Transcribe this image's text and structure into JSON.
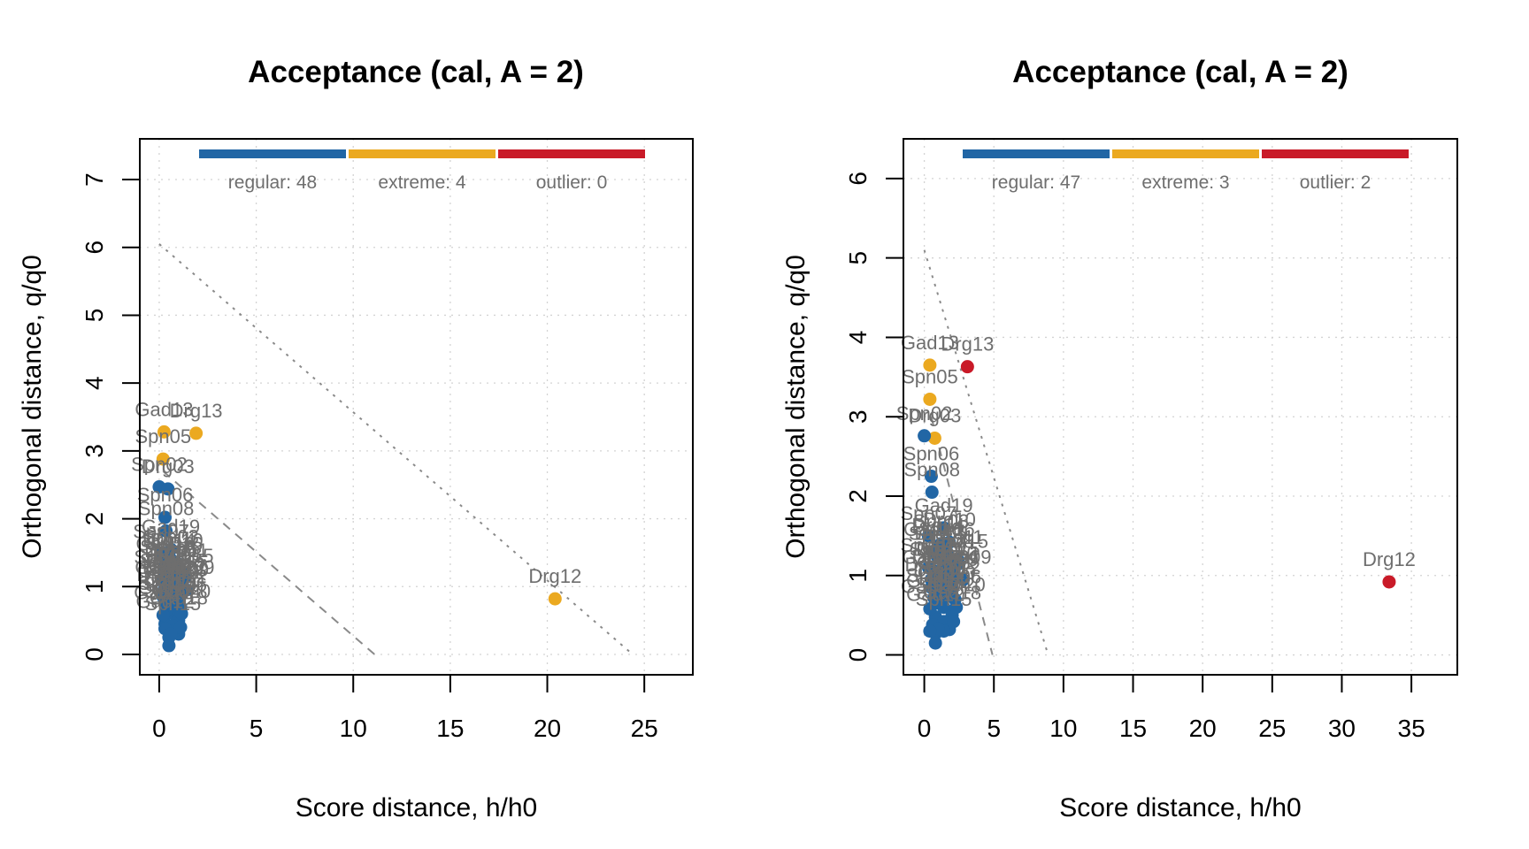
{
  "chart_data": [
    {
      "type": "scatter",
      "title": "Acceptance (cal, A = 2)",
      "xlabel": "Score distance, h/h0",
      "ylabel": "Orthogonal distance, q/q0",
      "xlim": [
        -1,
        27.5
      ],
      "ylim": [
        -0.3,
        7.6
      ],
      "xticks": [
        0,
        5,
        10,
        15,
        20,
        25
      ],
      "yticks": [
        0,
        1,
        2,
        3,
        4,
        5,
        6,
        7
      ],
      "grid": true,
      "legend": {
        "placement": "top",
        "items": [
          {
            "label": "regular: 48",
            "color": "#2166a5"
          },
          {
            "label": "extreme: 4",
            "color": "#eba920"
          },
          {
            "label": "outlier: 0",
            "color": "#c91a28"
          }
        ]
      },
      "boundaries": [
        {
          "name": "extreme",
          "style": "dashed",
          "points": [
            [
              0.2,
              2.7
            ],
            [
              11.1,
              0
            ]
          ]
        },
        {
          "name": "outlier",
          "style": "dotted",
          "points": [
            [
              0,
              6.05
            ],
            [
              24.4,
              0
            ]
          ]
        }
      ],
      "colors": {
        "regular": "#2166a5",
        "extreme": "#eba920",
        "outlier": "#c91a28",
        "label": "#6e6e6e"
      },
      "points": [
        {
          "label": "Gad13",
          "x": 0.25,
          "y": 3.28,
          "class": "extreme"
        },
        {
          "label": "Drg13",
          "x": 1.9,
          "y": 3.26,
          "class": "extreme"
        },
        {
          "label": "Spn05",
          "x": 0.2,
          "y": 2.88,
          "class": "extreme"
        },
        {
          "label": "Drg12",
          "x": 20.4,
          "y": 0.82,
          "class": "extreme"
        },
        {
          "label": "Spn02",
          "x": 0.0,
          "y": 2.47,
          "class": "regular"
        },
        {
          "label": "Drg03",
          "x": 0.45,
          "y": 2.44,
          "class": "regular"
        },
        {
          "label": "Spn06",
          "x": 0.3,
          "y": 2.02,
          "class": "regular"
        },
        {
          "label": "Spn08",
          "x": 0.35,
          "y": 1.82,
          "class": "regular"
        },
        {
          "label": "Gad19",
          "x": 0.6,
          "y": 1.55,
          "class": "regular"
        },
        {
          "label": "Spn07",
          "x": 0.1,
          "y": 1.48,
          "class": "regular"
        },
        {
          "label": "Drg10",
          "x": 0.9,
          "y": 1.35,
          "class": "regular"
        },
        {
          "label": "Gad15",
          "x": 1.3,
          "y": 1.12,
          "class": "regular"
        },
        {
          "label": "Spn09",
          "x": 1.4,
          "y": 0.95,
          "class": "regular"
        },
        {
          "label": "Drg09",
          "x": 1.2,
          "y": 0.92,
          "class": "regular"
        },
        {
          "label": "Gad12",
          "x": 0.3,
          "y": 0.45,
          "class": "regular"
        },
        {
          "label": "Drg05",
          "x": 0.6,
          "y": 1.2,
          "class": "regular"
        },
        {
          "label": "Spn11",
          "x": 0.4,
          "y": 1.05,
          "class": "regular"
        },
        {
          "label": "Gad10",
          "x": 0.8,
          "y": 0.75,
          "class": "regular"
        },
        {
          "label": "Drg07",
          "x": 0.2,
          "y": 0.85,
          "class": "regular"
        },
        {
          "label": "Spn04",
          "x": 0.7,
          "y": 0.6,
          "class": "regular"
        },
        {
          "label": "Gad18",
          "x": 1.0,
          "y": 0.5,
          "class": "regular"
        },
        {
          "label": "Drg02",
          "x": 0.5,
          "y": 0.95,
          "class": "regular"
        },
        {
          "label": "Spn10",
          "x": 0.9,
          "y": 1.0,
          "class": "regular"
        },
        {
          "label": "Gad16",
          "x": 0.3,
          "y": 1.3,
          "class": "regular"
        },
        {
          "label": "Drg06",
          "x": 1.1,
          "y": 0.7,
          "class": "regular"
        },
        {
          "label": "Spn03",
          "x": 0.6,
          "y": 1.4,
          "class": "regular"
        },
        {
          "label": "Gad14",
          "x": 0.4,
          "y": 0.65,
          "class": "regular"
        },
        {
          "label": "Drg11",
          "x": 1.2,
          "y": 1.2,
          "class": "regular"
        },
        {
          "label": "Spn01",
          "x": 0.15,
          "y": 1.1,
          "class": "regular"
        },
        {
          "label": "Gad11",
          "x": 0.75,
          "y": 0.88,
          "class": "regular"
        },
        {
          "label": "Drg04",
          "x": 0.55,
          "y": 0.78,
          "class": "regular"
        },
        {
          "label": "Spn12",
          "x": 1.0,
          "y": 0.82,
          "class": "regular"
        },
        {
          "label": "Gad17",
          "x": 0.25,
          "y": 0.95,
          "class": "regular"
        },
        {
          "label": "Drg08",
          "x": 0.85,
          "y": 1.15,
          "class": "regular"
        },
        {
          "label": "Spn13",
          "x": 0.45,
          "y": 1.25,
          "class": "regular"
        },
        {
          "label": "Gad20",
          "x": 1.15,
          "y": 0.6,
          "class": "regular"
        },
        {
          "label": "Drg01",
          "x": 0.65,
          "y": 1.05,
          "class": "regular"
        },
        {
          "label": "Spn14",
          "x": 0.35,
          "y": 0.72,
          "class": "regular"
        },
        {
          "label": "Gad21",
          "x": 0.95,
          "y": 0.95,
          "class": "regular"
        },
        {
          "label": "Drg14",
          "x": 0.5,
          "y": 1.35,
          "class": "regular"
        },
        {
          "label": "Spn15",
          "x": 0.7,
          "y": 0.42,
          "class": "regular"
        },
        {
          "label": "Gad22",
          "x": 0.2,
          "y": 0.58,
          "class": "regular"
        },
        {
          "label": "Drg15",
          "x": 1.05,
          "y": 1.05,
          "class": "regular"
        },
        {
          "label": "Spn16",
          "x": 0.8,
          "y": 1.3,
          "class": "regular"
        },
        {
          "label": "Gad23",
          "x": 0.4,
          "y": 0.9,
          "class": "regular"
        },
        {
          "label": "",
          "x": 0.5,
          "y": 0.25,
          "class": "regular"
        },
        {
          "label": "",
          "x": 0.5,
          "y": 0.13,
          "class": "regular"
        },
        {
          "label": "",
          "x": 1.0,
          "y": 0.3,
          "class": "regular"
        },
        {
          "label": "",
          "x": 0.8,
          "y": 0.35,
          "class": "regular"
        },
        {
          "label": "",
          "x": 0.3,
          "y": 0.38,
          "class": "regular"
        },
        {
          "label": "",
          "x": 1.1,
          "y": 0.4,
          "class": "regular"
        },
        {
          "label": "",
          "x": 0.6,
          "y": 0.3,
          "class": "regular"
        }
      ]
    },
    {
      "type": "scatter",
      "title": "Acceptance (cal, A = 2)",
      "xlabel": "Score distance, h/h0",
      "ylabel": "Orthogonal distance, q/q0",
      "xlim": [
        -1.5,
        38.3
      ],
      "ylim": [
        -0.25,
        6.5
      ],
      "xticks": [
        0,
        5,
        10,
        15,
        20,
        25,
        30,
        35
      ],
      "yticks": [
        0,
        1,
        2,
        3,
        4,
        5,
        6
      ],
      "grid": true,
      "legend": {
        "placement": "top",
        "items": [
          {
            "label": "regular: 47",
            "color": "#2166a5"
          },
          {
            "label": "extreme: 3",
            "color": "#eba920"
          },
          {
            "label": "outlier: 2",
            "color": "#c91a28"
          }
        ]
      },
      "boundaries": [
        {
          "name": "extreme",
          "style": "dashed",
          "points": [
            [
              0.5,
              3.0
            ],
            [
              4.9,
              0
            ]
          ]
        },
        {
          "name": "outlier",
          "style": "dotted",
          "points": [
            [
              0,
              5.1
            ],
            [
              8.9,
              0
            ]
          ]
        }
      ],
      "colors": {
        "regular": "#2166a5",
        "extreme": "#eba920",
        "outlier": "#c91a28",
        "label": "#6e6e6e"
      },
      "points": [
        {
          "label": "Gad13",
          "x": 0.4,
          "y": 3.65,
          "class": "extreme"
        },
        {
          "label": "Drg13",
          "x": 3.1,
          "y": 3.63,
          "class": "outlier"
        },
        {
          "label": "Spn05",
          "x": 0.4,
          "y": 3.22,
          "class": "extreme"
        },
        {
          "label": "Drg03",
          "x": 0.75,
          "y": 2.73,
          "class": "extreme"
        },
        {
          "label": "Drg12",
          "x": 33.4,
          "y": 0.92,
          "class": "outlier"
        },
        {
          "label": "Spn02",
          "x": 0.0,
          "y": 2.76,
          "class": "regular"
        },
        {
          "label": "Spn06",
          "x": 0.5,
          "y": 2.25,
          "class": "regular"
        },
        {
          "label": "Spn08",
          "x": 0.55,
          "y": 2.05,
          "class": "regular"
        },
        {
          "label": "Gad19",
          "x": 1.4,
          "y": 1.6,
          "class": "regular"
        },
        {
          "label": "Spn07",
          "x": 0.3,
          "y": 1.5,
          "class": "regular"
        },
        {
          "label": "Drg10",
          "x": 1.8,
          "y": 1.42,
          "class": "regular"
        },
        {
          "label": "Gad15",
          "x": 2.5,
          "y": 1.15,
          "class": "regular"
        },
        {
          "label": "Spn09",
          "x": 2.8,
          "y": 0.95,
          "class": "regular"
        },
        {
          "label": "Drg09",
          "x": 2.0,
          "y": 0.92,
          "class": "regular"
        },
        {
          "label": "Gad12",
          "x": 0.8,
          "y": 0.48,
          "class": "regular"
        },
        {
          "label": "Drg05",
          "x": 1.2,
          "y": 1.25,
          "class": "regular"
        },
        {
          "label": "Spn11",
          "x": 0.9,
          "y": 1.05,
          "class": "regular"
        },
        {
          "label": "Gad10",
          "x": 1.6,
          "y": 0.75,
          "class": "regular"
        },
        {
          "label": "Drg07",
          "x": 0.5,
          "y": 0.85,
          "class": "regular"
        },
        {
          "label": "Spn04",
          "x": 1.4,
          "y": 0.6,
          "class": "regular"
        },
        {
          "label": "Gad18",
          "x": 2.0,
          "y": 0.5,
          "class": "regular"
        },
        {
          "label": "Drg02",
          "x": 1.0,
          "y": 0.95,
          "class": "regular"
        },
        {
          "label": "Spn10",
          "x": 1.8,
          "y": 1.0,
          "class": "regular"
        },
        {
          "label": "Gad16",
          "x": 0.6,
          "y": 1.3,
          "class": "regular"
        },
        {
          "label": "Drg06",
          "x": 2.2,
          "y": 0.7,
          "class": "regular"
        },
        {
          "label": "Spn03",
          "x": 1.2,
          "y": 1.4,
          "class": "regular"
        },
        {
          "label": "Gad14",
          "x": 0.8,
          "y": 0.65,
          "class": "regular"
        },
        {
          "label": "Drg11",
          "x": 2.4,
          "y": 1.2,
          "class": "regular"
        },
        {
          "label": "Spn01",
          "x": 0.3,
          "y": 1.1,
          "class": "regular"
        },
        {
          "label": "Gad11",
          "x": 1.5,
          "y": 0.88,
          "class": "regular"
        },
        {
          "label": "Drg04",
          "x": 1.1,
          "y": 0.78,
          "class": "regular"
        },
        {
          "label": "Spn12",
          "x": 2.0,
          "y": 0.82,
          "class": "regular"
        },
        {
          "label": "Gad17",
          "x": 0.5,
          "y": 0.95,
          "class": "regular"
        },
        {
          "label": "Drg08",
          "x": 1.7,
          "y": 1.15,
          "class": "regular"
        },
        {
          "label": "Spn13",
          "x": 0.9,
          "y": 1.25,
          "class": "regular"
        },
        {
          "label": "Gad20",
          "x": 2.3,
          "y": 0.6,
          "class": "regular"
        },
        {
          "label": "Drg01",
          "x": 1.3,
          "y": 1.05,
          "class": "regular"
        },
        {
          "label": "Spn14",
          "x": 0.7,
          "y": 0.72,
          "class": "regular"
        },
        {
          "label": "Gad21",
          "x": 1.9,
          "y": 0.95,
          "class": "regular"
        },
        {
          "label": "Drg14",
          "x": 1.0,
          "y": 1.35,
          "class": "regular"
        },
        {
          "label": "Spn15",
          "x": 1.4,
          "y": 0.42,
          "class": "regular"
        },
        {
          "label": "Gad22",
          "x": 0.4,
          "y": 0.58,
          "class": "regular"
        },
        {
          "label": "Drg15",
          "x": 2.1,
          "y": 1.05,
          "class": "regular"
        },
        {
          "label": "Spn16",
          "x": 1.6,
          "y": 1.3,
          "class": "regular"
        },
        {
          "label": "",
          "x": 0.8,
          "y": 0.27,
          "class": "regular"
        },
        {
          "label": "",
          "x": 0.8,
          "y": 0.15,
          "class": "regular"
        },
        {
          "label": "",
          "x": 1.8,
          "y": 0.32,
          "class": "regular"
        },
        {
          "label": "",
          "x": 1.4,
          "y": 0.3,
          "class": "regular"
        },
        {
          "label": "",
          "x": 0.6,
          "y": 0.38,
          "class": "regular"
        },
        {
          "label": "",
          "x": 2.1,
          "y": 0.42,
          "class": "regular"
        },
        {
          "label": "",
          "x": 1.0,
          "y": 0.33,
          "class": "regular"
        },
        {
          "label": "",
          "x": 0.4,
          "y": 0.3,
          "class": "regular"
        }
      ]
    }
  ]
}
